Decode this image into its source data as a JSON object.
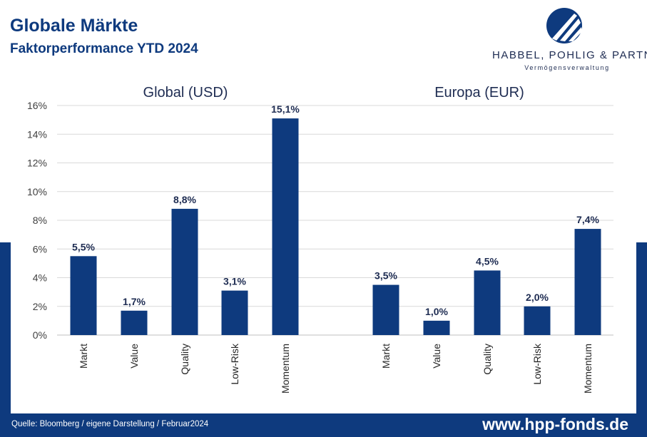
{
  "header": {
    "title": "Globale Märkte",
    "subtitle": "Faktorperformance YTD 2024"
  },
  "logo": {
    "name": "HABBEL, POHLIG & PARTNER",
    "tagline": "Vermögensverwaltung"
  },
  "footer": {
    "source": "Quelle: Bloomberg / eigene Darstellung / Februar2024",
    "url": "www.hpp-fonds.de"
  },
  "colors": {
    "brand": "#0e3a7e",
    "bar": "#0e3a7e",
    "grid": "#d9d9d9",
    "text": "#1e2c52"
  },
  "chart_data": [
    {
      "type": "bar",
      "title": "Global (USD)",
      "categories": [
        "Markt",
        "Value",
        "Quality",
        "Low-Risk",
        "Momentum"
      ],
      "values": [
        5.5,
        1.7,
        8.8,
        3.1,
        15.1
      ],
      "value_labels": [
        "5,5%",
        "1,7%",
        "8,8%",
        "3,1%",
        "15,1%"
      ],
      "ylim": [
        0,
        16
      ],
      "yticks": [
        "0%",
        "2%",
        "4%",
        "6%",
        "8%",
        "10%",
        "12%",
        "14%",
        "16%"
      ],
      "grid": true
    },
    {
      "type": "bar",
      "title": "Europa (EUR)",
      "categories": [
        "Markt",
        "Value",
        "Quality",
        "Low-Risk",
        "Momentum"
      ],
      "values": [
        3.5,
        1.0,
        4.5,
        2.0,
        7.4
      ],
      "value_labels": [
        "3,5%",
        "1,0%",
        "4,5%",
        "2,0%",
        "7,4%"
      ],
      "ylim": [
        0,
        16
      ],
      "grid": true
    }
  ]
}
